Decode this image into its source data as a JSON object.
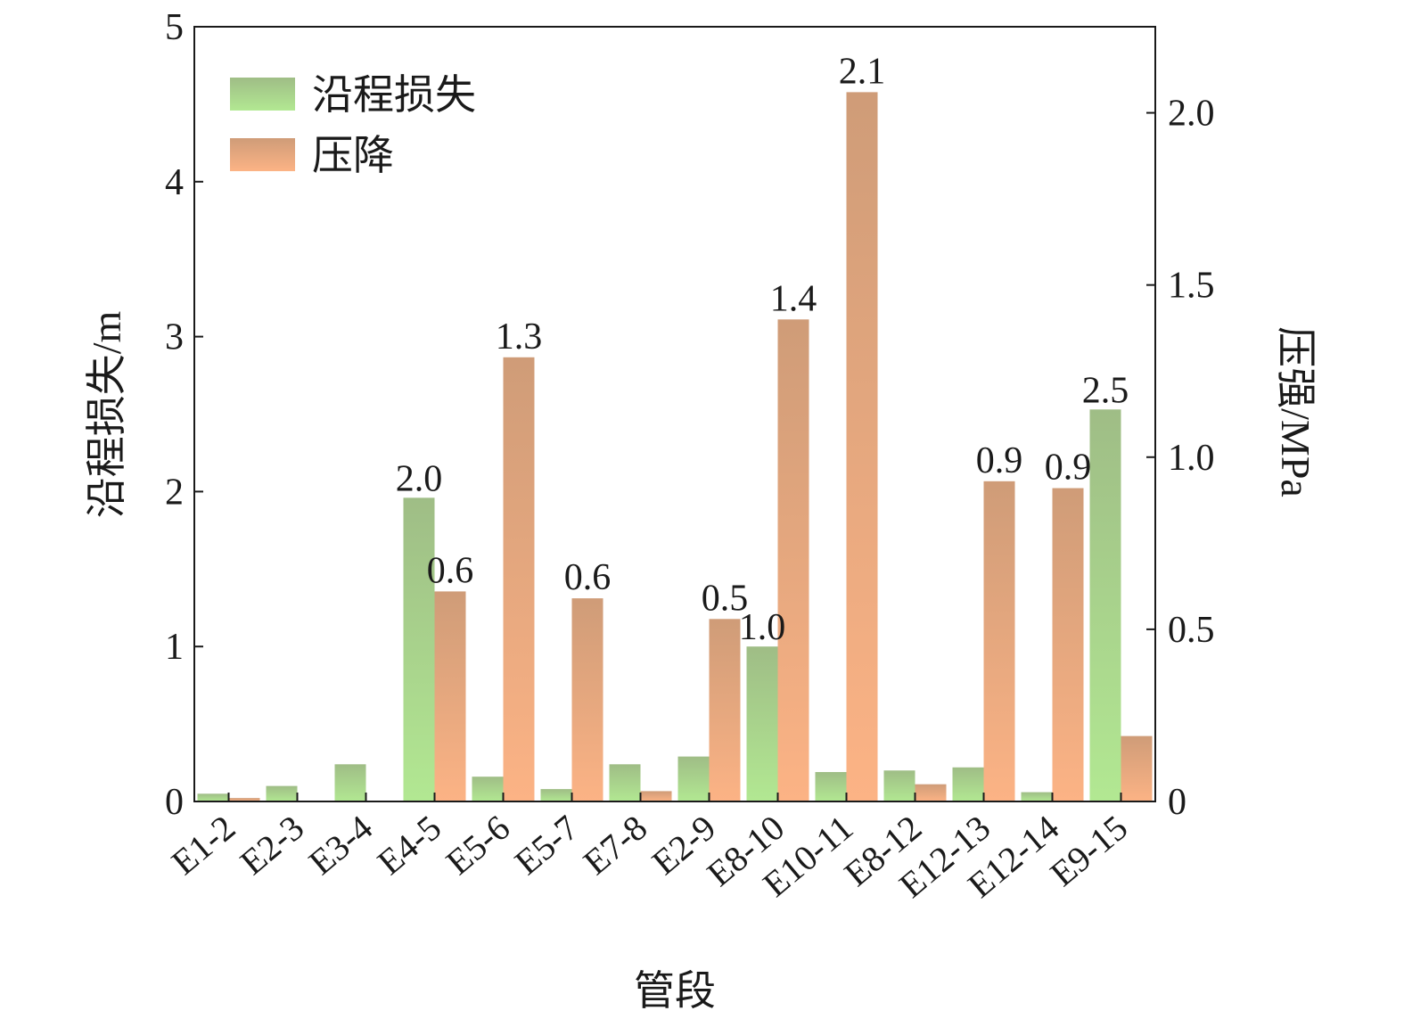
{
  "chart_data": {
    "type": "bar",
    "title": "",
    "xlabel": "管段",
    "ylabel": "沿程损失/m",
    "y2label": "压强/MPa",
    "ylim": [
      0,
      5
    ],
    "y2lim": [
      0,
      2.25
    ],
    "yticks": [
      "0",
      "1",
      "2",
      "3",
      "4",
      "5"
    ],
    "y2ticks": [
      "0",
      "0.5",
      "1.0",
      "1.5",
      "2.0"
    ],
    "grid": false,
    "legend_position": "top-left",
    "categories": [
      "E1-2",
      "E2-3",
      "E3-4",
      "E4-5",
      "E5-6",
      "E5-7",
      "E7-8",
      "E2-9",
      "E8-10",
      "E10-11",
      "E8-12",
      "E12-13",
      "E12-14",
      "E9-15"
    ],
    "series": [
      {
        "name": "沿程损失",
        "axis": "left",
        "color_top": "#9fbd86",
        "color_bottom": "#b2e892",
        "values": [
          0.05,
          0.1,
          0.24,
          1.96,
          0.16,
          0.08,
          0.24,
          0.29,
          1.0,
          0.19,
          0.2,
          0.22,
          0.06,
          2.53
        ],
        "data_labels": [
          "",
          "",
          "",
          "2.0",
          "",
          "",
          "",
          "",
          "1.0",
          "",
          "",
          "",
          "",
          "2.5"
        ]
      },
      {
        "name": "压降",
        "axis": "right",
        "color_top": "#cf9c78",
        "color_bottom": "#fcb385",
        "values": [
          0.01,
          0.0,
          0.0,
          0.61,
          1.29,
          0.59,
          0.03,
          0.53,
          1.4,
          2.06,
          0.05,
          0.93,
          0.91,
          0.19
        ],
        "data_labels": [
          "",
          "",
          "",
          "0.6",
          "1.3",
          "0.6",
          "",
          "0.5",
          "1.4",
          "2.1",
          "",
          "0.9",
          "0.9",
          ""
        ]
      }
    ]
  }
}
